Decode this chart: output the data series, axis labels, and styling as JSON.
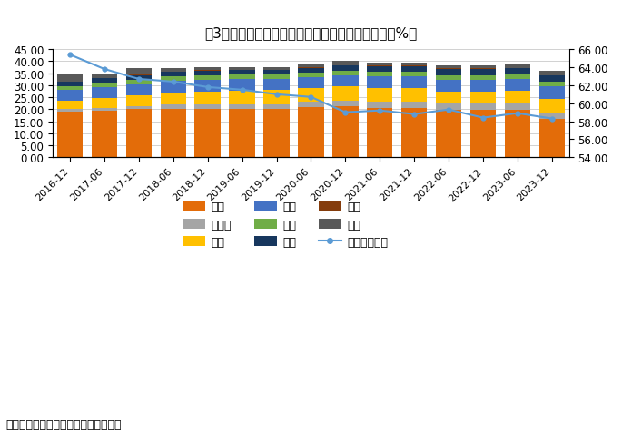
{
  "title": "图3：全球已披露币种构成的外汇储备构成（单位：%）",
  "source": "资料来源：国家外汇管理局；中银证券",
  "categories": [
    "2016-12",
    "2017-06",
    "2017-12",
    "2018-06",
    "2018-12",
    "2019-06",
    "2019-12",
    "2020-06",
    "2020-12",
    "2021-06",
    "2021-12",
    "2022-06",
    "2022-12",
    "2023-06",
    "2023-12"
  ],
  "欧元": [
    19.1,
    19.5,
    20.0,
    20.2,
    20.3,
    20.2,
    20.2,
    21.0,
    21.2,
    20.5,
    20.6,
    19.8,
    19.8,
    19.7,
    16.0
  ],
  "人民币": [
    1.1,
    1.1,
    1.2,
    1.8,
    1.9,
    2.0,
    2.0,
    2.1,
    2.3,
    2.5,
    2.6,
    2.8,
    2.7,
    2.7,
    2.8
  ],
  "日元": [
    3.5,
    4.0,
    4.5,
    5.0,
    5.2,
    5.4,
    5.8,
    5.6,
    6.0,
    5.8,
    5.6,
    4.8,
    4.9,
    5.2,
    5.6
  ],
  "英镑": [
    4.3,
    4.5,
    4.7,
    4.9,
    4.9,
    5.1,
    4.7,
    4.8,
    4.8,
    4.8,
    4.8,
    4.9,
    4.9,
    4.9,
    5.0
  ],
  "澳元": [
    1.5,
    1.7,
    1.8,
    1.7,
    1.7,
    1.7,
    1.7,
    1.8,
    1.8,
    2.0,
    2.0,
    2.0,
    2.0,
    2.0,
    2.1
  ],
  "加元": [
    1.9,
    2.0,
    2.0,
    2.0,
    2.0,
    1.9,
    1.8,
    2.0,
    2.1,
    2.4,
    2.4,
    2.5,
    2.5,
    2.5,
    2.6
  ],
  "瑞郎": [
    0.2,
    0.2,
    0.2,
    0.2,
    0.2,
    0.2,
    0.2,
    0.2,
    0.2,
    0.2,
    0.2,
    0.2,
    0.2,
    0.2,
    0.2
  ],
  "其他": [
    3.4,
    2.0,
    2.6,
    1.2,
    1.3,
    1.0,
    1.1,
    1.5,
    1.6,
    1.1,
    1.3,
    1.2,
    1.3,
    1.3,
    1.8
  ],
  "美元_right": [
    65.4,
    63.8,
    62.7,
    62.4,
    61.8,
    61.5,
    61.0,
    60.7,
    59.0,
    59.2,
    58.8,
    59.3,
    58.4,
    58.9,
    58.3
  ],
  "colors": {
    "欧元": "#E36C09",
    "人民币": "#A5A5A5",
    "日元": "#FFC000",
    "英镑": "#4472C4",
    "澳元": "#70AD47",
    "加元": "#17375E",
    "瑞郎": "#843C0C",
    "其他": "#595959",
    "美元线": "#5B9BD5"
  },
  "stack_order": [
    "欧元",
    "人民币",
    "日元",
    "英镑",
    "澳元",
    "加元",
    "瑞郎",
    "其他"
  ],
  "ylim_left": [
    0,
    45
  ],
  "ylim_right": [
    54,
    66
  ],
  "yticks_left": [
    0.0,
    5.0,
    10.0,
    15.0,
    20.0,
    25.0,
    30.0,
    35.0,
    40.0,
    45.0
  ],
  "yticks_right": [
    54.0,
    56.0,
    58.0,
    60.0,
    62.0,
    64.0,
    66.0
  ]
}
